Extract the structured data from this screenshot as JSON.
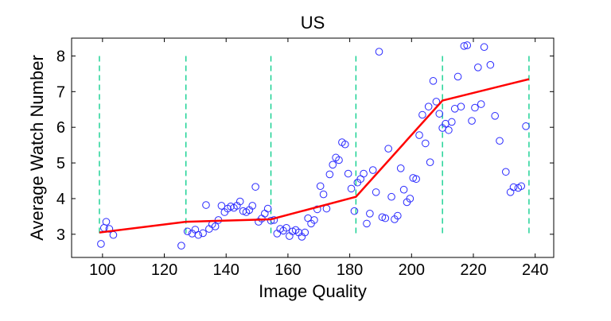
{
  "chart_data": {
    "type": "scatter",
    "title": "US",
    "xlabel": "Image Quality",
    "ylabel": "Average Watch Number",
    "xlim": [
      90,
      246
    ],
    "ylim": [
      2.35,
      8.5
    ],
    "xticks": [
      100,
      120,
      140,
      160,
      180,
      200,
      220,
      240
    ],
    "yticks": [
      3,
      4,
      5,
      6,
      7,
      8
    ],
    "grid": false,
    "legend": "none",
    "series": [
      {
        "kind": "scatter",
        "marker": "circle",
        "color": "#2a2aff",
        "points": [
          [
            99.5,
            2.73
          ],
          [
            100.5,
            3.18
          ],
          [
            101.2,
            3.35
          ],
          [
            102.2,
            3.15
          ],
          [
            103.5,
            2.98
          ],
          [
            125.5,
            2.68
          ],
          [
            127.5,
            3.08
          ],
          [
            129.0,
            3.02
          ],
          [
            130.0,
            3.13
          ],
          [
            131.0,
            2.98
          ],
          [
            132.5,
            3.03
          ],
          [
            133.5,
            3.82
          ],
          [
            134.5,
            3.15
          ],
          [
            135.5,
            3.28
          ],
          [
            136.5,
            3.22
          ],
          [
            137.5,
            3.4
          ],
          [
            138.5,
            3.8
          ],
          [
            139.5,
            3.62
          ],
          [
            140.5,
            3.72
          ],
          [
            141.5,
            3.78
          ],
          [
            142.5,
            3.74
          ],
          [
            143.5,
            3.8
          ],
          [
            144.5,
            3.92
          ],
          [
            145.5,
            3.65
          ],
          [
            146.5,
            3.62
          ],
          [
            147.5,
            3.68
          ],
          [
            148.5,
            3.8
          ],
          [
            149.5,
            4.33
          ],
          [
            150.5,
            3.35
          ],
          [
            151.5,
            3.44
          ],
          [
            152.5,
            3.58
          ],
          [
            153.5,
            3.72
          ],
          [
            154.5,
            3.38
          ],
          [
            155.5,
            3.4
          ],
          [
            156.5,
            3.02
          ],
          [
            157.5,
            3.15
          ],
          [
            158.5,
            3.1
          ],
          [
            159.5,
            3.18
          ],
          [
            160.5,
            2.95
          ],
          [
            161.5,
            3.08
          ],
          [
            162.5,
            3.12
          ],
          [
            163.5,
            3.05
          ],
          [
            164.5,
            2.93
          ],
          [
            165.5,
            3.05
          ],
          [
            166.5,
            3.45
          ],
          [
            167.5,
            3.3
          ],
          [
            168.5,
            3.4
          ],
          [
            169.5,
            3.7
          ],
          [
            170.5,
            4.35
          ],
          [
            171.5,
            4.12
          ],
          [
            172.5,
            3.72
          ],
          [
            173.5,
            4.68
          ],
          [
            174.5,
            4.95
          ],
          [
            175.5,
            5.15
          ],
          [
            176.5,
            5.08
          ],
          [
            177.5,
            5.58
          ],
          [
            178.5,
            5.52
          ],
          [
            179.5,
            4.7
          ],
          [
            180.5,
            4.28
          ],
          [
            181.5,
            3.65
          ],
          [
            182.5,
            4.45
          ],
          [
            183.5,
            4.55
          ],
          [
            184.5,
            4.7
          ],
          [
            185.5,
            3.3
          ],
          [
            186.5,
            3.58
          ],
          [
            187.5,
            4.8
          ],
          [
            188.5,
            4.18
          ],
          [
            189.5,
            8.12
          ],
          [
            190.5,
            3.48
          ],
          [
            191.5,
            3.45
          ],
          [
            192.5,
            5.4
          ],
          [
            193.5,
            4.05
          ],
          [
            194.5,
            3.42
          ],
          [
            195.5,
            3.52
          ],
          [
            196.5,
            4.85
          ],
          [
            197.5,
            4.25
          ],
          [
            198.5,
            3.9
          ],
          [
            199.5,
            4.0
          ],
          [
            200.5,
            4.58
          ],
          [
            201.5,
            4.55
          ],
          [
            202.5,
            5.78
          ],
          [
            203.5,
            6.35
          ],
          [
            204.5,
            5.55
          ],
          [
            205.5,
            6.58
          ],
          [
            206.0,
            5.02
          ],
          [
            207.0,
            7.3
          ],
          [
            208.0,
            6.72
          ],
          [
            209.0,
            6.38
          ],
          [
            210.0,
            5.98
          ],
          [
            211.0,
            6.1
          ],
          [
            212.0,
            5.92
          ],
          [
            213.0,
            6.15
          ],
          [
            214.0,
            6.52
          ],
          [
            215.0,
            7.42
          ],
          [
            216.0,
            6.58
          ],
          [
            217.0,
            8.28
          ],
          [
            218.0,
            8.3
          ],
          [
            219.5,
            6.18
          ],
          [
            220.5,
            6.55
          ],
          [
            221.5,
            7.68
          ],
          [
            222.5,
            6.65
          ],
          [
            223.5,
            8.25
          ],
          [
            225.5,
            7.75
          ],
          [
            227.0,
            6.32
          ],
          [
            228.5,
            5.62
          ],
          [
            230.5,
            4.75
          ],
          [
            232.0,
            4.18
          ],
          [
            233.0,
            4.32
          ],
          [
            234.5,
            4.3
          ],
          [
            235.5,
            4.35
          ],
          [
            237.0,
            6.03
          ]
        ]
      },
      {
        "kind": "line",
        "color": "#ff0000",
        "points": [
          [
            99,
            3.05
          ],
          [
            127,
            3.35
          ],
          [
            154.5,
            3.42
          ],
          [
            182,
            4.05
          ],
          [
            210,
            6.75
          ],
          [
            238,
            7.35
          ]
        ]
      }
    ],
    "vlines": {
      "style": "dashed",
      "color": "#00cc88",
      "x": [
        99,
        127,
        154.5,
        182,
        210,
        238
      ],
      "y_range": [
        3,
        8
      ]
    }
  }
}
